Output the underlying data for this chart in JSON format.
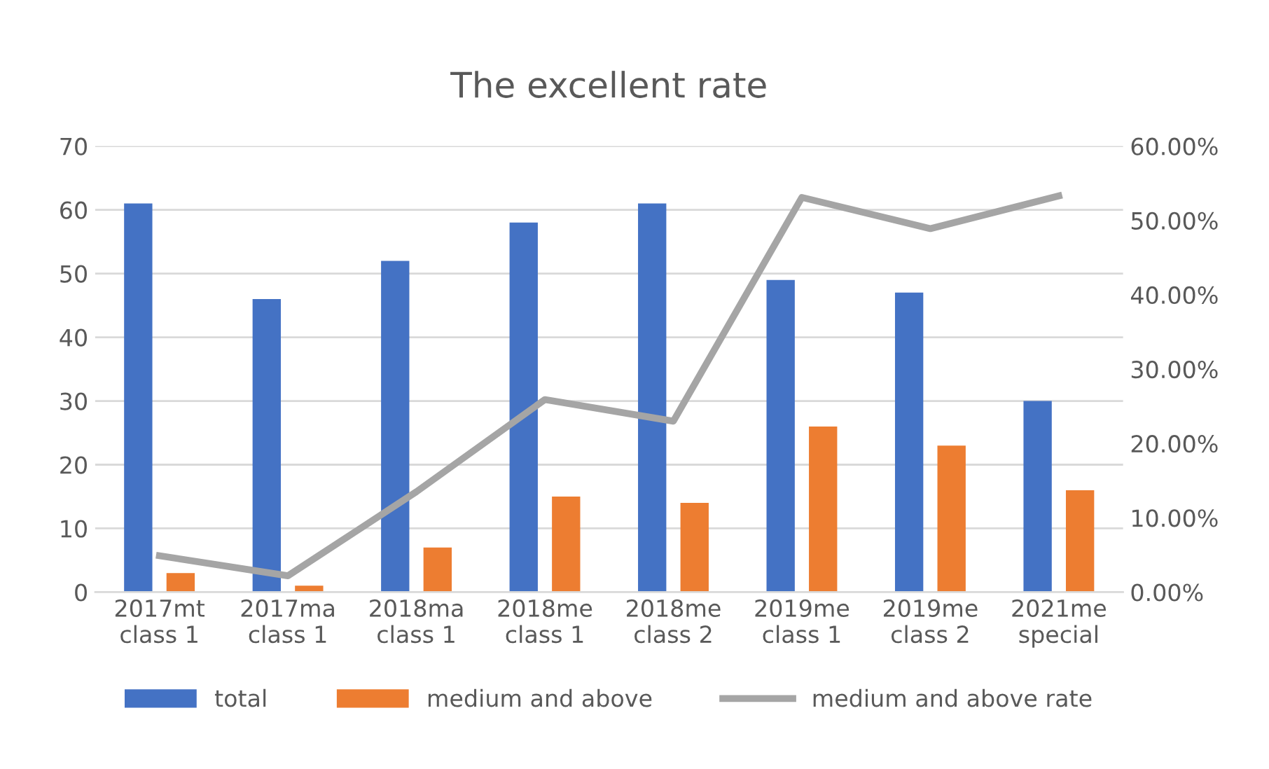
{
  "chart_data": {
    "type": "bar",
    "title": "The excellent rate",
    "categories": [
      "2017mt\nclass 1",
      "2017ma\nclass 1",
      "2018ma\nclass 1",
      "2018me\nclass 1",
      "2018me\nclass 2",
      "2019me\nclass 1",
      "2019me\nclass 2",
      "2021me\nspecial"
    ],
    "series": [
      {
        "name": "total",
        "color": "#4472c4",
        "values": [
          61,
          46,
          52,
          58,
          61,
          49,
          47,
          30
        ]
      },
      {
        "name": "medium and above",
        "color": "#ed7d31",
        "values": [
          3,
          1,
          7,
          15,
          14,
          26,
          23,
          16
        ]
      },
      {
        "name": "medium and above rate",
        "type": "line",
        "axis": "y2",
        "color": "#a5a5a5",
        "values": [
          0.049,
          0.022,
          0.135,
          0.259,
          0.23,
          0.531,
          0.489,
          0.533
        ]
      }
    ],
    "ylim": [
      0,
      70
    ],
    "yticks": [
      0,
      10,
      20,
      30,
      40,
      50,
      60,
      70
    ],
    "y2lim": [
      0,
      0.6
    ],
    "y2ticks": [
      {
        "value": 0,
        "label": "0.00%"
      },
      {
        "value": 0.1,
        "label": "10.00%"
      },
      {
        "value": 0.2,
        "label": "20.00%"
      },
      {
        "value": 0.3,
        "label": "30.00%"
      },
      {
        "value": 0.4,
        "label": "40.00%"
      },
      {
        "value": 0.5,
        "label": "50.00%"
      },
      {
        "value": 0.6,
        "label": "60.00%"
      }
    ],
    "grid": "y",
    "legend": "bottom",
    "marker": "none",
    "line_style": "solid"
  }
}
